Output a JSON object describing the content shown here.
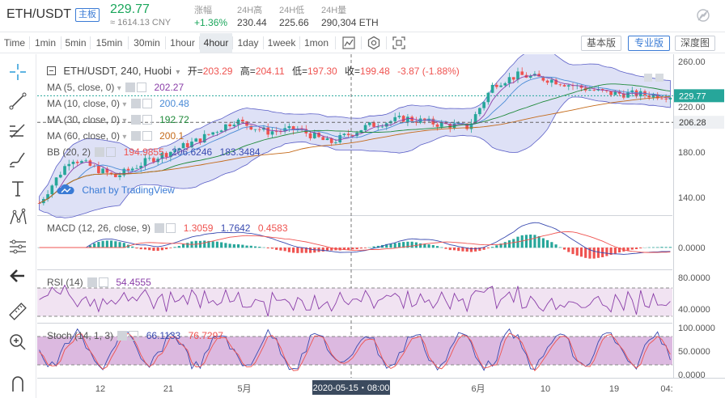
{
  "header": {
    "pair": "ETH/USDT",
    "board_badge": "主板",
    "last_price": "229.77",
    "cny_price": "≈ 1614.13 CNY",
    "stats": [
      {
        "label": "涨幅",
        "value": "+1.36%",
        "color": "#1aa65b"
      },
      {
        "label": "24H高",
        "value": "230.44",
        "color": "#444"
      },
      {
        "label": "24H低",
        "value": "225.66",
        "color": "#444"
      },
      {
        "label": "24H量",
        "value": "290,304 ETH",
        "color": "#444"
      }
    ]
  },
  "toolbar": {
    "timeframes": [
      "Time",
      "1min",
      "5min",
      "15min",
      "30min",
      "1hour",
      "4hour",
      "1day",
      "1week",
      "1mon"
    ],
    "active_timeframe": "4hour",
    "icons": [
      "chart-type-icon",
      "settings-icon",
      "fullscreen-icon"
    ],
    "views": [
      "基本版",
      "专业版",
      "深度图"
    ],
    "active_view": "专业版"
  },
  "left_tools": [
    "crosshair-icon",
    "trendline-icon",
    "fib-icon",
    "brush-icon",
    "text-icon",
    "pattern-icon",
    "measure-icon",
    "back-arrow-icon",
    "ruler-icon",
    "zoom-icon",
    "magnet-icon"
  ],
  "legend": {
    "main": {
      "title": "ETH/USDT, 240, Huobi",
      "o_label": "开=",
      "o": "203.29",
      "h_label": "高=",
      "h": "204.11",
      "l_label": "低=",
      "l": "197.30",
      "c_label": "收=",
      "c": "199.48",
      "chg": "-3.87 (-1.88%)"
    },
    "ma": [
      {
        "label": "MA (5, close, 0)",
        "value": "202.27",
        "color": "#8a3ea8"
      },
      {
        "label": "MA (10, close, 0)",
        "value": "200.48",
        "color": "#4a8bd6"
      },
      {
        "label": "MA (30, close, 0)",
        "value": "192.72",
        "color": "#1f8a3a"
      },
      {
        "label": "MA (60, close, 0)",
        "value": "200.1",
        "color": "#c46a1a"
      }
    ],
    "bb": {
      "label": "BB (20, 2)",
      "v1": "194.9855",
      "v2": "206.6246",
      "v3": "183.3484"
    },
    "macd": {
      "label": "MACD (12, 26, close, 9)",
      "v1": "1.3059",
      "v2": "1.7642",
      "v3": "0.4583"
    },
    "rsi": {
      "label": "RSI (14)",
      "value": "54.4555"
    },
    "stoch": {
      "label": "Stoch (14, 1, 3)",
      "v1": "66.1133",
      "v2": "76.7297"
    }
  },
  "watermark": "Chart by TradingView",
  "price_axis": {
    "ticks": [
      "260.00",
      "220.00",
      "180.00",
      "140.00"
    ],
    "last_tag": "229.77",
    "cursor_tag": "206.28",
    "macd_ticks": [
      "0.0000"
    ],
    "rsi_ticks": [
      "80.0000",
      "40.0000"
    ],
    "stoch_ticks": [
      "100.0000",
      "50.0000",
      "0.0000"
    ]
  },
  "time_axis": {
    "labels": [
      "12",
      "21",
      "5月",
      "6月",
      "10",
      "19",
      "04:"
    ],
    "cursor_label": "2020-05-15・08:00"
  },
  "colors": {
    "up": "#26a69a",
    "down": "#ef5350",
    "accent": "#3a7bd5",
    "bb_fill": "#c3c8ee",
    "rsi_band": "#f1e3f2",
    "stoch_band": "#dcb9e0"
  },
  "chart_data": {
    "type": "candlestick",
    "ylim": [
      125,
      265
    ],
    "price_ticks": [
      140,
      180,
      220,
      260
    ],
    "last_price": 229.77,
    "cursor_price": 206.28,
    "key_levels": [
      {
        "x": 0.0,
        "close": 135
      },
      {
        "x": 0.05,
        "close": 175
      },
      {
        "x": 0.12,
        "close": 158
      },
      {
        "x": 0.17,
        "close": 172
      },
      {
        "x": 0.25,
        "close": 190
      },
      {
        "x": 0.31,
        "close": 208
      },
      {
        "x": 0.36,
        "close": 198
      },
      {
        "x": 0.41,
        "close": 200
      },
      {
        "x": 0.46,
        "close": 188
      },
      {
        "x": 0.52,
        "close": 203
      },
      {
        "x": 0.58,
        "close": 210
      },
      {
        "x": 0.63,
        "close": 205
      },
      {
        "x": 0.68,
        "close": 202
      },
      {
        "x": 0.72,
        "close": 240
      },
      {
        "x": 0.76,
        "close": 248
      },
      {
        "x": 0.81,
        "close": 244
      },
      {
        "x": 0.85,
        "close": 238
      },
      {
        "x": 0.9,
        "close": 232
      },
      {
        "x": 0.95,
        "close": 231
      },
      {
        "x": 1.0,
        "close": 229.77
      }
    ]
  }
}
